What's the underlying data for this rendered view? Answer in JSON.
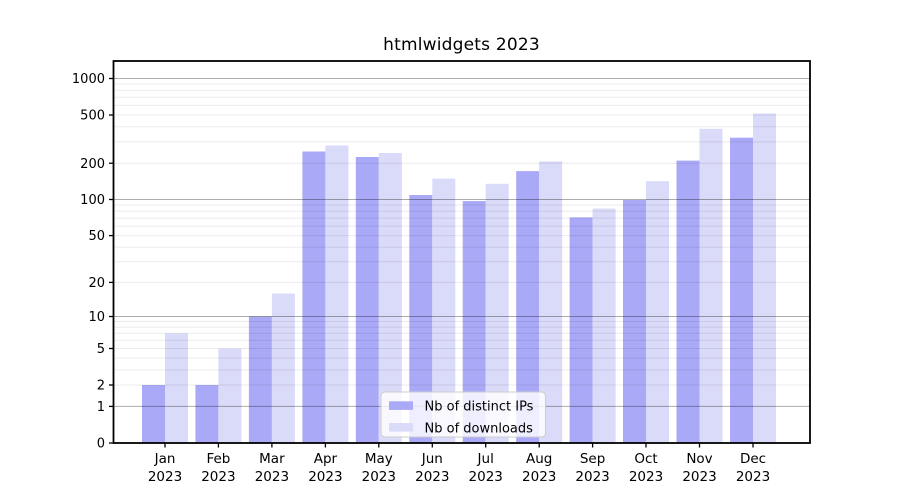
{
  "title": "htmlwidgets 2023",
  "chart_data": {
    "type": "bar",
    "title": "htmlwidgets 2023",
    "categories": [
      "Jan",
      "Feb",
      "Mar",
      "Apr",
      "May",
      "Jun",
      "Jul",
      "Aug",
      "Sep",
      "Oct",
      "Nov",
      "Dec"
    ],
    "category_year": "2023",
    "series": [
      {
        "name": "Nb of distinct IPs",
        "color": "#a9a9f7",
        "values": [
          2,
          2,
          10,
          250,
          225,
          109,
          97,
          172,
          71,
          99,
          210,
          325
        ]
      },
      {
        "name": "Nb of downloads",
        "color": "#dadaf9",
        "values": [
          7,
          5,
          16,
          280,
          243,
          149,
          135,
          207,
          84,
          142,
          385,
          515
        ]
      }
    ],
    "yscale": "log1p",
    "yticks": [
      0,
      1,
      2,
      5,
      10,
      20,
      50,
      100,
      200,
      500,
      1000
    ],
    "ylim": [
      0,
      1400
    ],
    "xlabel": "",
    "ylabel": "",
    "grid": "on",
    "legend_position": "bottom-center",
    "colors": {
      "major_gridline": "rgba(0,0,0,0.33)",
      "minor_gridline": "rgba(0,0,0,0.08)",
      "spine": "#000000",
      "text": "#000000",
      "legend_border": "#cccccc",
      "legend_background": "rgba(255,255,255,0.8)"
    }
  }
}
